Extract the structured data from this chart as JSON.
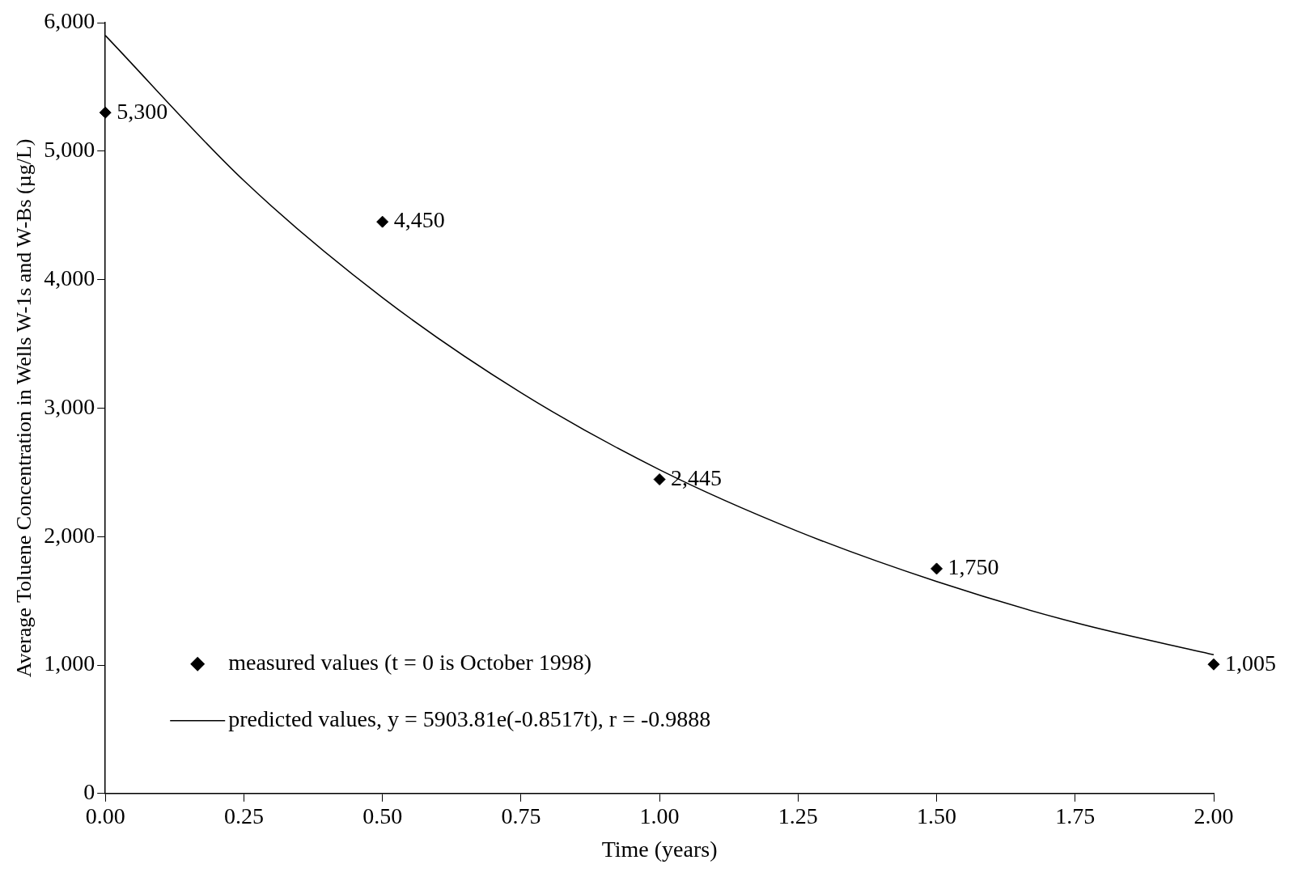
{
  "chart_data": {
    "type": "scatter",
    "xlabel": "Time (years)",
    "ylabel": "Average Toluene Concentration in Wells W-1s and W-Bs (µg/L)",
    "xlim": [
      0,
      2
    ],
    "xticks": [
      {
        "value": 0,
        "label": "0.00"
      },
      {
        "value": 0.25,
        "label": "0.25"
      },
      {
        "value": 0.5,
        "label": "0.50"
      },
      {
        "value": 0.75,
        "label": "0.75"
      },
      {
        "value": 1,
        "label": "1.00"
      },
      {
        "value": 1.25,
        "label": "1.25"
      },
      {
        "value": 1.5,
        "label": "1.50"
      },
      {
        "value": 1.75,
        "label": "1.75"
      },
      {
        "value": 2,
        "label": "2.00"
      }
    ],
    "ylim": [
      0,
      6000
    ],
    "yticks": [
      0,
      {
        "value": 1000,
        "label": "1,000"
      },
      {
        "value": 2000,
        "label": "2,000"
      },
      {
        "value": 3000,
        "label": "3,000"
      },
      {
        "value": 4000,
        "label": "4,000"
      },
      {
        "value": 5000,
        "label": "5,000"
      },
      {
        "value": 6000,
        "label": "6,000"
      }
    ],
    "grid": false,
    "legend": "bottom left",
    "series": [
      {
        "name": "measured values (t = 0 is October 1998)",
        "type": "scatter",
        "marker": "diamond",
        "color": "#000000",
        "x": [
          0,
          0.5,
          1,
          1.5,
          2
        ],
        "values": [
          5300,
          4450,
          2445,
          1750,
          1005
        ],
        "value_labels": [
          "5,300",
          "4,450",
          "2,445",
          "1,750",
          "1,005"
        ]
      },
      {
        "name": "predicted values, y = 5903.81e(-0.8517t), r = -0.9888",
        "type": "line",
        "marker": "none",
        "color": "#000000",
        "x": [
          0,
          0.25,
          0.5,
          0.75,
          1,
          1.25,
          1.5,
          1.75,
          2
        ],
        "values": [
          5900,
          4770,
          3860,
          3120,
          2520,
          2040,
          1650,
          1330,
          1080
        ]
      }
    ]
  }
}
